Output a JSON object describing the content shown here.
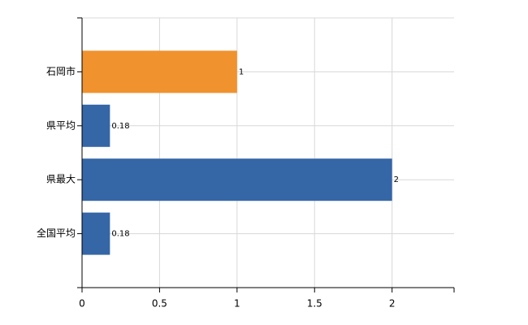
{
  "chart_data": {
    "type": "bar",
    "orientation": "horizontal",
    "categories": [
      "石岡市",
      "県平均",
      "県最大",
      "全国平均"
    ],
    "values": [
      1,
      0.18,
      2,
      0.18
    ],
    "colors": [
      "#f0922e",
      "#3566a6",
      "#3566a6",
      "#3566a6"
    ],
    "xlim": [
      0,
      2.4
    ],
    "xticks": [
      0,
      0.5,
      1,
      1.5,
      2
    ],
    "grid": true
  }
}
